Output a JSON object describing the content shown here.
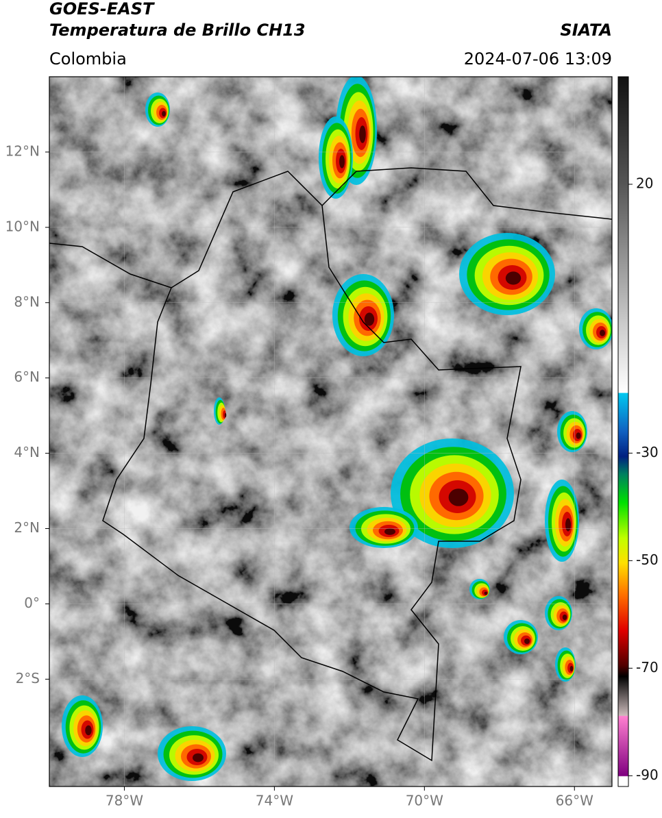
{
  "header": {
    "satellite": "GOES-EAST",
    "product": "Temperatura de Brillo CH13",
    "source": "SIATA",
    "region": "Colombia",
    "datetime": "2024-07-06 13:09"
  },
  "map": {
    "xlim": [
      -80,
      -65
    ],
    "ylim": [
      -4.85,
      14
    ],
    "lon_ticks": [
      {
        "value": -78,
        "label": "78°W"
      },
      {
        "value": -74,
        "label": "74°W"
      },
      {
        "value": -70,
        "label": "70°W"
      },
      {
        "value": -66,
        "label": "66°W"
      }
    ],
    "lat_ticks": [
      {
        "value": 12,
        "label": "12°N"
      },
      {
        "value": 10,
        "label": "10°N"
      },
      {
        "value": 8,
        "label": "8°N"
      },
      {
        "value": 6,
        "label": "6°N"
      },
      {
        "value": 4,
        "label": "4°N"
      },
      {
        "value": 2,
        "label": "2°N"
      },
      {
        "value": 0,
        "label": "0°"
      },
      {
        "value": -2,
        "label": "2°S"
      }
    ],
    "grid": true
  },
  "colorbar": {
    "lim": [
      -92,
      40
    ],
    "ticks": [
      20,
      -30,
      -50,
      -70,
      -90
    ]
  }
}
